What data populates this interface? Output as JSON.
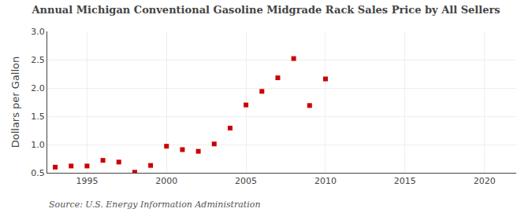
{
  "chart_data": {
    "type": "scatter",
    "title": "Annual Michigan Conventional Gasoline Midgrade Rack Sales Price by All Sellers",
    "ylabel": "Dollars per Gallon",
    "annotations": [
      "Source: U.S. Energy Information Administration"
    ],
    "x": [
      1993,
      1994,
      1995,
      1996,
      1997,
      1998,
      1999,
      2000,
      2001,
      2002,
      2003,
      2004,
      2005,
      2006,
      2007,
      2008,
      2009,
      2010
    ],
    "values": [
      0.6,
      0.62,
      0.62,
      0.72,
      0.69,
      0.51,
      0.63,
      0.97,
      0.91,
      0.88,
      1.01,
      1.29,
      1.7,
      1.94,
      2.18,
      2.52,
      1.69,
      2.16
    ],
    "color": "#cc0000",
    "marker": "square",
    "xlim": [
      1992.5,
      2022
    ],
    "ylim": [
      0.5,
      3.0
    ],
    "xticks": [
      1995,
      2000,
      2005,
      2010,
      2015,
      2020
    ],
    "yticks": [
      0.5,
      {
        "value": 1,
        "label": "1.0"
      },
      1.5,
      {
        "value": 2,
        "label": "2.0"
      },
      2.5,
      {
        "value": 3,
        "label": "3.0"
      }
    ],
    "grid": true
  }
}
